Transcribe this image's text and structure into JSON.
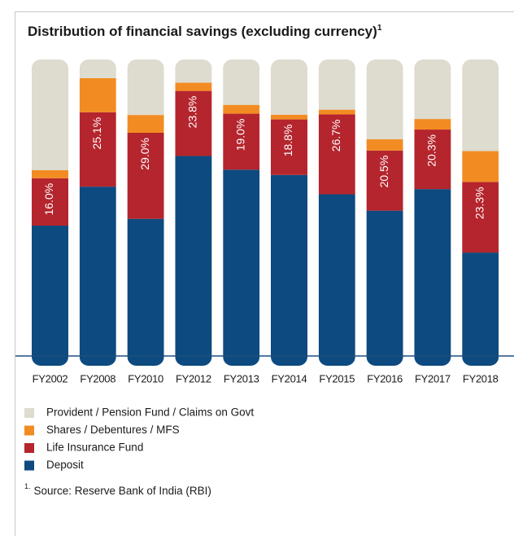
{
  "chart_data": {
    "type": "stacked_bar_100",
    "title": "Distribution of financial savings (excluding currency)",
    "title_note": "1",
    "categories": [
      "FY2002",
      "FY2008",
      "FY2010",
      "FY2012",
      "FY2013",
      "FY2014",
      "FY2015",
      "FY2016",
      "FY2017",
      "FY2018"
    ],
    "series": [
      {
        "name": "Deposit",
        "color": "#0d4a7f",
        "values": [
          44,
          57.1,
          46.2,
          73.1,
          63.2,
          61.3,
          54.1,
          49.5,
          56.9,
          34.1
        ]
      },
      {
        "name": "Life Insurance Fund",
        "color": "#b5252d",
        "values": [
          16.0,
          25.1,
          29.0,
          23.8,
          19.0,
          18.8,
          26.7,
          20.5,
          20.3,
          23.3
        ],
        "value_labels": [
          "16.0%",
          "25.1%",
          "29.0%",
          "23.8%",
          "19.0%",
          "18.8%",
          "26.7%",
          "20.5%",
          "20.3%",
          "23.3%"
        ]
      },
      {
        "name": "Shares / Debentures / MFS",
        "color": "#f28c22",
        "values": [
          2.7,
          11.5,
          6,
          3,
          3,
          1.6,
          1.6,
          3.8,
          3.6,
          10.2
        ]
      },
      {
        "name": "Provident / Pension Fund / Claims on Govt",
        "color": "#dedbcf",
        "values": [
          37.4,
          6.3,
          18.7,
          8.5,
          15.4,
          18.7,
          16.8,
          27.2,
          20.3,
          30.2
        ]
      }
    ],
    "footnote_marker": "1.",
    "footnote": "Source: Reserve Bank of India (RBI)"
  }
}
